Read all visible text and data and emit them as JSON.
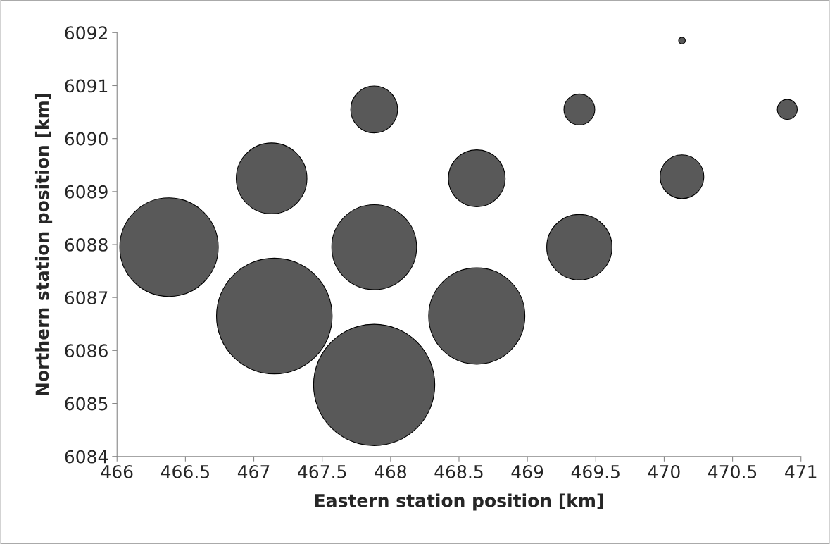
{
  "chart_data": {
    "type": "bubble",
    "xlabel": "Eastern station position [km]",
    "ylabel": "Northern station position [km]",
    "x": [
      466.38,
      467.15,
      467.88,
      467.88,
      467.88,
      467.13,
      468.63,
      468.63,
      469.38,
      469.38,
      470.13,
      470.13,
      470.9
    ],
    "values": [
      6087.95,
      6086.65,
      6085.35,
      6087.95,
      6090.55,
      6089.25,
      6086.65,
      6089.25,
      6087.95,
      6090.55,
      6089.28,
      6091.85,
      6090.55
    ],
    "sizes": [
      0.66,
      0.91,
      1,
      0.49,
      0.15,
      0.34,
      0.63,
      0.22,
      0.29,
      0.065,
      0.13,
      0.003,
      0.027
    ],
    "color": "#595959",
    "xlim": [
      466,
      471
    ],
    "xticks": [
      466,
      466.5,
      467,
      467.5,
      468,
      468.5,
      469,
      469.5,
      470,
      470.5,
      471
    ],
    "ylim": [
      6084,
      6092
    ],
    "yticks": [
      6084,
      6085,
      6086,
      6087,
      6088,
      6089,
      6090,
      6091,
      6092
    ],
    "grid": false,
    "legend": false
  }
}
